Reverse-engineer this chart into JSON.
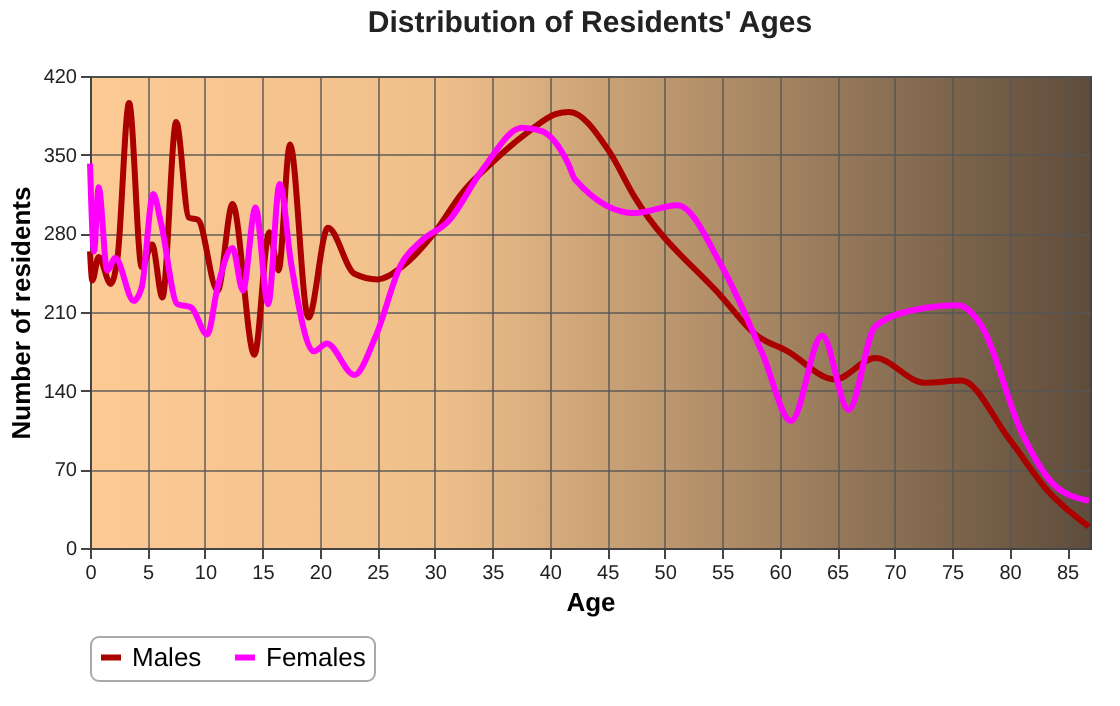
{
  "chart_data": {
    "type": "line",
    "title": "Distribution of Residents' Ages",
    "xlabel": "Age",
    "ylabel": "Number of residents",
    "xlim": [
      0,
      87
    ],
    "xticks": [
      0,
      5,
      10,
      15,
      20,
      25,
      30,
      35,
      40,
      45,
      50,
      55,
      60,
      65,
      70,
      75,
      80,
      85
    ],
    "ylim": [
      0,
      420
    ],
    "yticks": [
      0,
      70,
      140,
      210,
      280,
      350,
      420
    ],
    "grid": true,
    "legend": "bottom",
    "series": [
      {
        "name": "Males",
        "color": "#aa0000",
        "x": [
          0,
          0.2,
          0.75,
          1.8,
          2.4,
          3.4,
          4.5,
          5.4,
          6.3,
          7.5,
          8.6,
          9.4,
          11.1,
          12.4,
          14.3,
          15.6,
          16.4,
          17.4,
          19,
          20.7,
          23,
          25,
          27.1,
          30,
          32.3,
          35.2,
          38.1,
          40.5,
          41.7,
          45.1,
          47.4,
          55,
          57.9,
          60.7,
          64.8,
          68.3,
          72.6,
          75.8,
          79.9,
          83.4,
          86.9
        ],
        "values": [
          264,
          238,
          259,
          235,
          259,
          396,
          250,
          270,
          223,
          379,
          294,
          292,
          229,
          306,
          172,
          281,
          247,
          359,
          205,
          285,
          244,
          239,
          250,
          281,
          315,
          345,
          370,
          386,
          388,
          354,
          312,
          223,
          190,
          175,
          150,
          169,
          147,
          149,
          98,
          50,
          19
        ]
      },
      {
        "name": "Females",
        "color": "#ff00ff",
        "x": [
          0,
          0.35,
          0.75,
          1.5,
          2.2,
          3.8,
          4.5,
          5.5,
          6.2,
          7.6,
          8.8,
          10.2,
          11.1,
          12.4,
          13.3,
          14.4,
          15.5,
          16.5,
          17.5,
          19.5,
          20.6,
          23,
          24.8,
          27.1,
          28.8,
          31.2,
          34.1,
          37.6,
          39.3,
          41.6,
          42.2,
          47.4,
          51.1,
          55,
          58.5,
          61,
          63.7,
          66,
          68.3,
          71.8,
          75.5,
          77.6,
          81,
          84,
          86.9
        ],
        "values": [
          342,
          264,
          321,
          247,
          258,
          220,
          232,
          315,
          288,
          217,
          214,
          190,
          232,
          267,
          229,
          303,
          217,
          324,
          253,
          175,
          182,
          154,
          187,
          253,
          273,
          291,
          336,
          374,
          371,
          342,
          328,
          298,
          305,
          250,
          173,
          113,
          189,
          123,
          197,
          212,
          216,
          197,
          104,
          55,
          42
        ]
      }
    ]
  }
}
